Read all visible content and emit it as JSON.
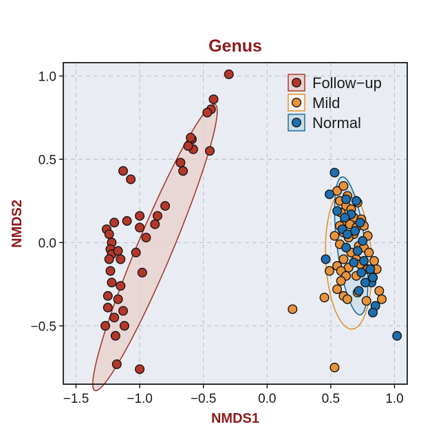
{
  "chart_data": {
    "type": "scatter",
    "title": "Genus",
    "xlabel": "NMDS1",
    "ylabel": "NMDS2",
    "xlim": [
      -1.6,
      1.1
    ],
    "ylim": [
      -0.85,
      1.08
    ],
    "xticks": [
      -1.5,
      -1.0,
      -0.5,
      0.0,
      0.5,
      1.0
    ],
    "xtick_labels": [
      "−1.5",
      "−1.0",
      "−0.5",
      "0.0",
      "0.5",
      "1.0"
    ],
    "yticks": [
      1.0,
      0.5,
      0.0,
      -0.5
    ],
    "ytick_labels": [
      "1.0",
      "0.5",
      "0.0",
      "−0.5"
    ],
    "grid": true,
    "legend_position": "top-right",
    "title_color": "#8B1A1A",
    "axis_label_color": "#8B1A1A",
    "panel_background": "#E9EDF3",
    "series": [
      {
        "name": "Follow−up",
        "color": "#B5372A",
        "ellipse": {
          "center": [
            -0.88,
            -0.03
          ],
          "semi_axis_major": 0.98,
          "semi_axis_minor": 0.13,
          "angle_deg": 61,
          "fill": "#E8CFCC",
          "stroke": "#A23B2F"
        },
        "points": [
          [
            -0.3,
            1.01
          ],
          [
            -0.42,
            0.86
          ],
          [
            -0.44,
            0.8
          ],
          [
            -0.47,
            0.78
          ],
          [
            -0.59,
            0.62
          ],
          [
            -0.6,
            0.63
          ],
          [
            -0.58,
            0.56
          ],
          [
            -0.62,
            0.58
          ],
          [
            -0.45,
            0.55
          ],
          [
            -0.66,
            0.43
          ],
          [
            -0.68,
            0.48
          ],
          [
            -1.13,
            0.43
          ],
          [
            -1.07,
            0.38
          ],
          [
            -0.8,
            0.22
          ],
          [
            -0.86,
            0.16
          ],
          [
            -0.88,
            0.11
          ],
          [
            -1.0,
            0.16
          ],
          [
            -1.1,
            0.13
          ],
          [
            -1.2,
            0.12
          ],
          [
            -1.0,
            0.09
          ],
          [
            -0.95,
            0.03
          ],
          [
            -1.26,
            0.08
          ],
          [
            -1.24,
            0.05
          ],
          [
            -1.22,
            0.0
          ],
          [
            -1.23,
            -0.04
          ],
          [
            -1.22,
            -0.07
          ],
          [
            -1.17,
            -0.05
          ],
          [
            -1.15,
            -0.1
          ],
          [
            -1.24,
            -0.1
          ],
          [
            -1.03,
            -0.06
          ],
          [
            -1.23,
            -0.17
          ],
          [
            -0.98,
            -0.18
          ],
          [
            -1.22,
            -0.24
          ],
          [
            -1.15,
            -0.26
          ],
          [
            -1.25,
            -0.32
          ],
          [
            -1.17,
            -0.34
          ],
          [
            -1.25,
            -0.39
          ],
          [
            -1.13,
            -0.41
          ],
          [
            -1.2,
            -0.45
          ],
          [
            -1.12,
            -0.5
          ],
          [
            -1.27,
            -0.5
          ],
          [
            -1.19,
            -0.56
          ],
          [
            -1.18,
            -0.73
          ],
          [
            -1.0,
            -0.76
          ]
        ]
      },
      {
        "name": "Mild",
        "color": "#E8923C",
        "ellipse": {
          "center": [
            0.64,
            -0.1
          ],
          "semi_axis_major": 0.42,
          "semi_axis_minor": 0.18,
          "angle_deg": 94,
          "fill": "none",
          "stroke": "#E0922E"
        },
        "points": [
          [
            0.55,
            0.31
          ],
          [
            0.6,
            0.34
          ],
          [
            0.63,
            0.28
          ],
          [
            0.57,
            0.25
          ],
          [
            0.62,
            0.22
          ],
          [
            0.66,
            0.2
          ],
          [
            0.71,
            0.24
          ],
          [
            0.58,
            0.18
          ],
          [
            0.68,
            0.15
          ],
          [
            0.74,
            0.14
          ],
          [
            0.61,
            0.13
          ],
          [
            0.57,
            0.1
          ],
          [
            0.65,
            0.11
          ],
          [
            0.7,
            0.09
          ],
          [
            0.76,
            0.1
          ],
          [
            0.6,
            0.06
          ],
          [
            0.68,
            0.05
          ],
          [
            0.53,
            0.04
          ],
          [
            0.64,
            0.03
          ],
          [
            0.79,
            0.04
          ],
          [
            0.57,
            -0.01
          ],
          [
            0.72,
            -0.02
          ],
          [
            0.66,
            -0.06
          ],
          [
            0.76,
            -0.03
          ],
          [
            0.8,
            -0.06
          ],
          [
            0.6,
            -0.1
          ],
          [
            0.7,
            -0.1
          ],
          [
            0.55,
            -0.14
          ],
          [
            0.64,
            -0.15
          ],
          [
            0.73,
            -0.13
          ],
          [
            0.84,
            -0.11
          ],
          [
            0.49,
            -0.17
          ],
          [
            0.58,
            -0.17
          ],
          [
            0.79,
            -0.16
          ],
          [
            0.86,
            -0.16
          ],
          [
            0.62,
            -0.2
          ],
          [
            0.7,
            -0.2
          ],
          [
            0.83,
            -0.21
          ],
          [
            0.58,
            -0.23
          ],
          [
            0.88,
            -0.29
          ],
          [
            0.55,
            -0.28
          ],
          [
            0.6,
            -0.32
          ],
          [
            0.71,
            -0.3
          ],
          [
            0.9,
            -0.34
          ],
          [
            0.45,
            -0.33
          ],
          [
            0.63,
            -0.34
          ],
          [
            0.78,
            -0.35
          ],
          [
            0.2,
            -0.4
          ],
          [
            0.53,
            -0.75
          ]
        ]
      },
      {
        "name": "Normal",
        "color": "#1F6FAE",
        "ellipse": {
          "center": [
            0.66,
            -0.02
          ],
          "semi_axis_major": 0.42,
          "semi_axis_minor": 0.11,
          "angle_deg": 100,
          "fill": "#C7DCE9",
          "stroke": "#1E6B9A"
        },
        "points": [
          [
            0.53,
            0.42
          ],
          [
            0.49,
            0.29
          ],
          [
            0.62,
            0.26
          ],
          [
            0.7,
            0.25
          ],
          [
            0.55,
            0.19
          ],
          [
            0.66,
            0.17
          ],
          [
            0.61,
            0.15
          ],
          [
            0.73,
            0.12
          ],
          [
            0.59,
            0.08
          ],
          [
            0.69,
            0.07
          ],
          [
            0.63,
            0.05
          ],
          [
            0.75,
            0.01
          ],
          [
            0.62,
            -0.03
          ],
          [
            0.71,
            -0.05
          ],
          [
            0.46,
            -0.1
          ],
          [
            0.68,
            -0.12
          ],
          [
            0.76,
            -0.11
          ],
          [
            0.81,
            -0.16
          ],
          [
            0.74,
            -0.18
          ],
          [
            0.82,
            -0.24
          ],
          [
            0.77,
            -0.24
          ],
          [
            0.83,
            -0.21
          ],
          [
            0.72,
            -0.29
          ],
          [
            0.85,
            -0.38
          ],
          [
            0.83,
            -0.42
          ],
          [
            1.02,
            -0.56
          ]
        ]
      }
    ]
  }
}
